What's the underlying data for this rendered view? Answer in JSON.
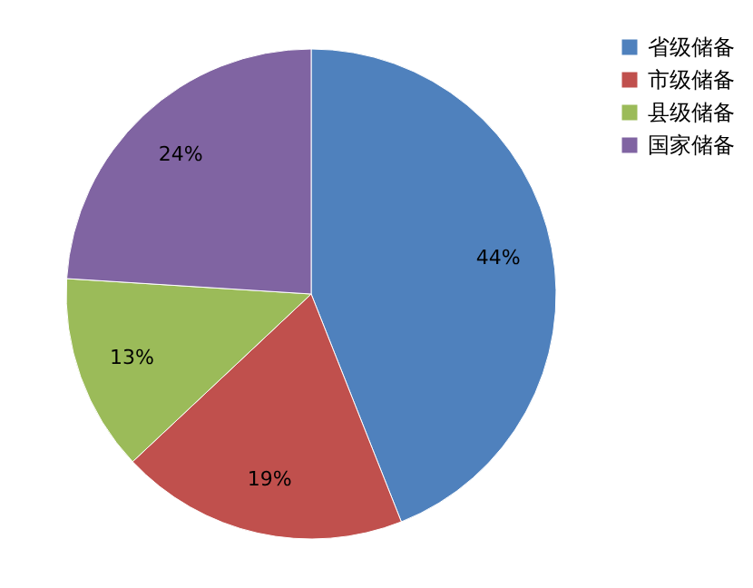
{
  "chart_data": {
    "type": "pie",
    "categories": [
      "省级储备",
      "市级储备",
      "县级储备",
      "国家储备"
    ],
    "values": [
      44,
      19,
      13,
      24
    ],
    "colors": [
      "#4f81bd",
      "#c0504d",
      "#9bbb59",
      "#8064a2"
    ],
    "value_labels": [
      "44%",
      "19%",
      "13%",
      "24%"
    ],
    "legend": "right"
  }
}
